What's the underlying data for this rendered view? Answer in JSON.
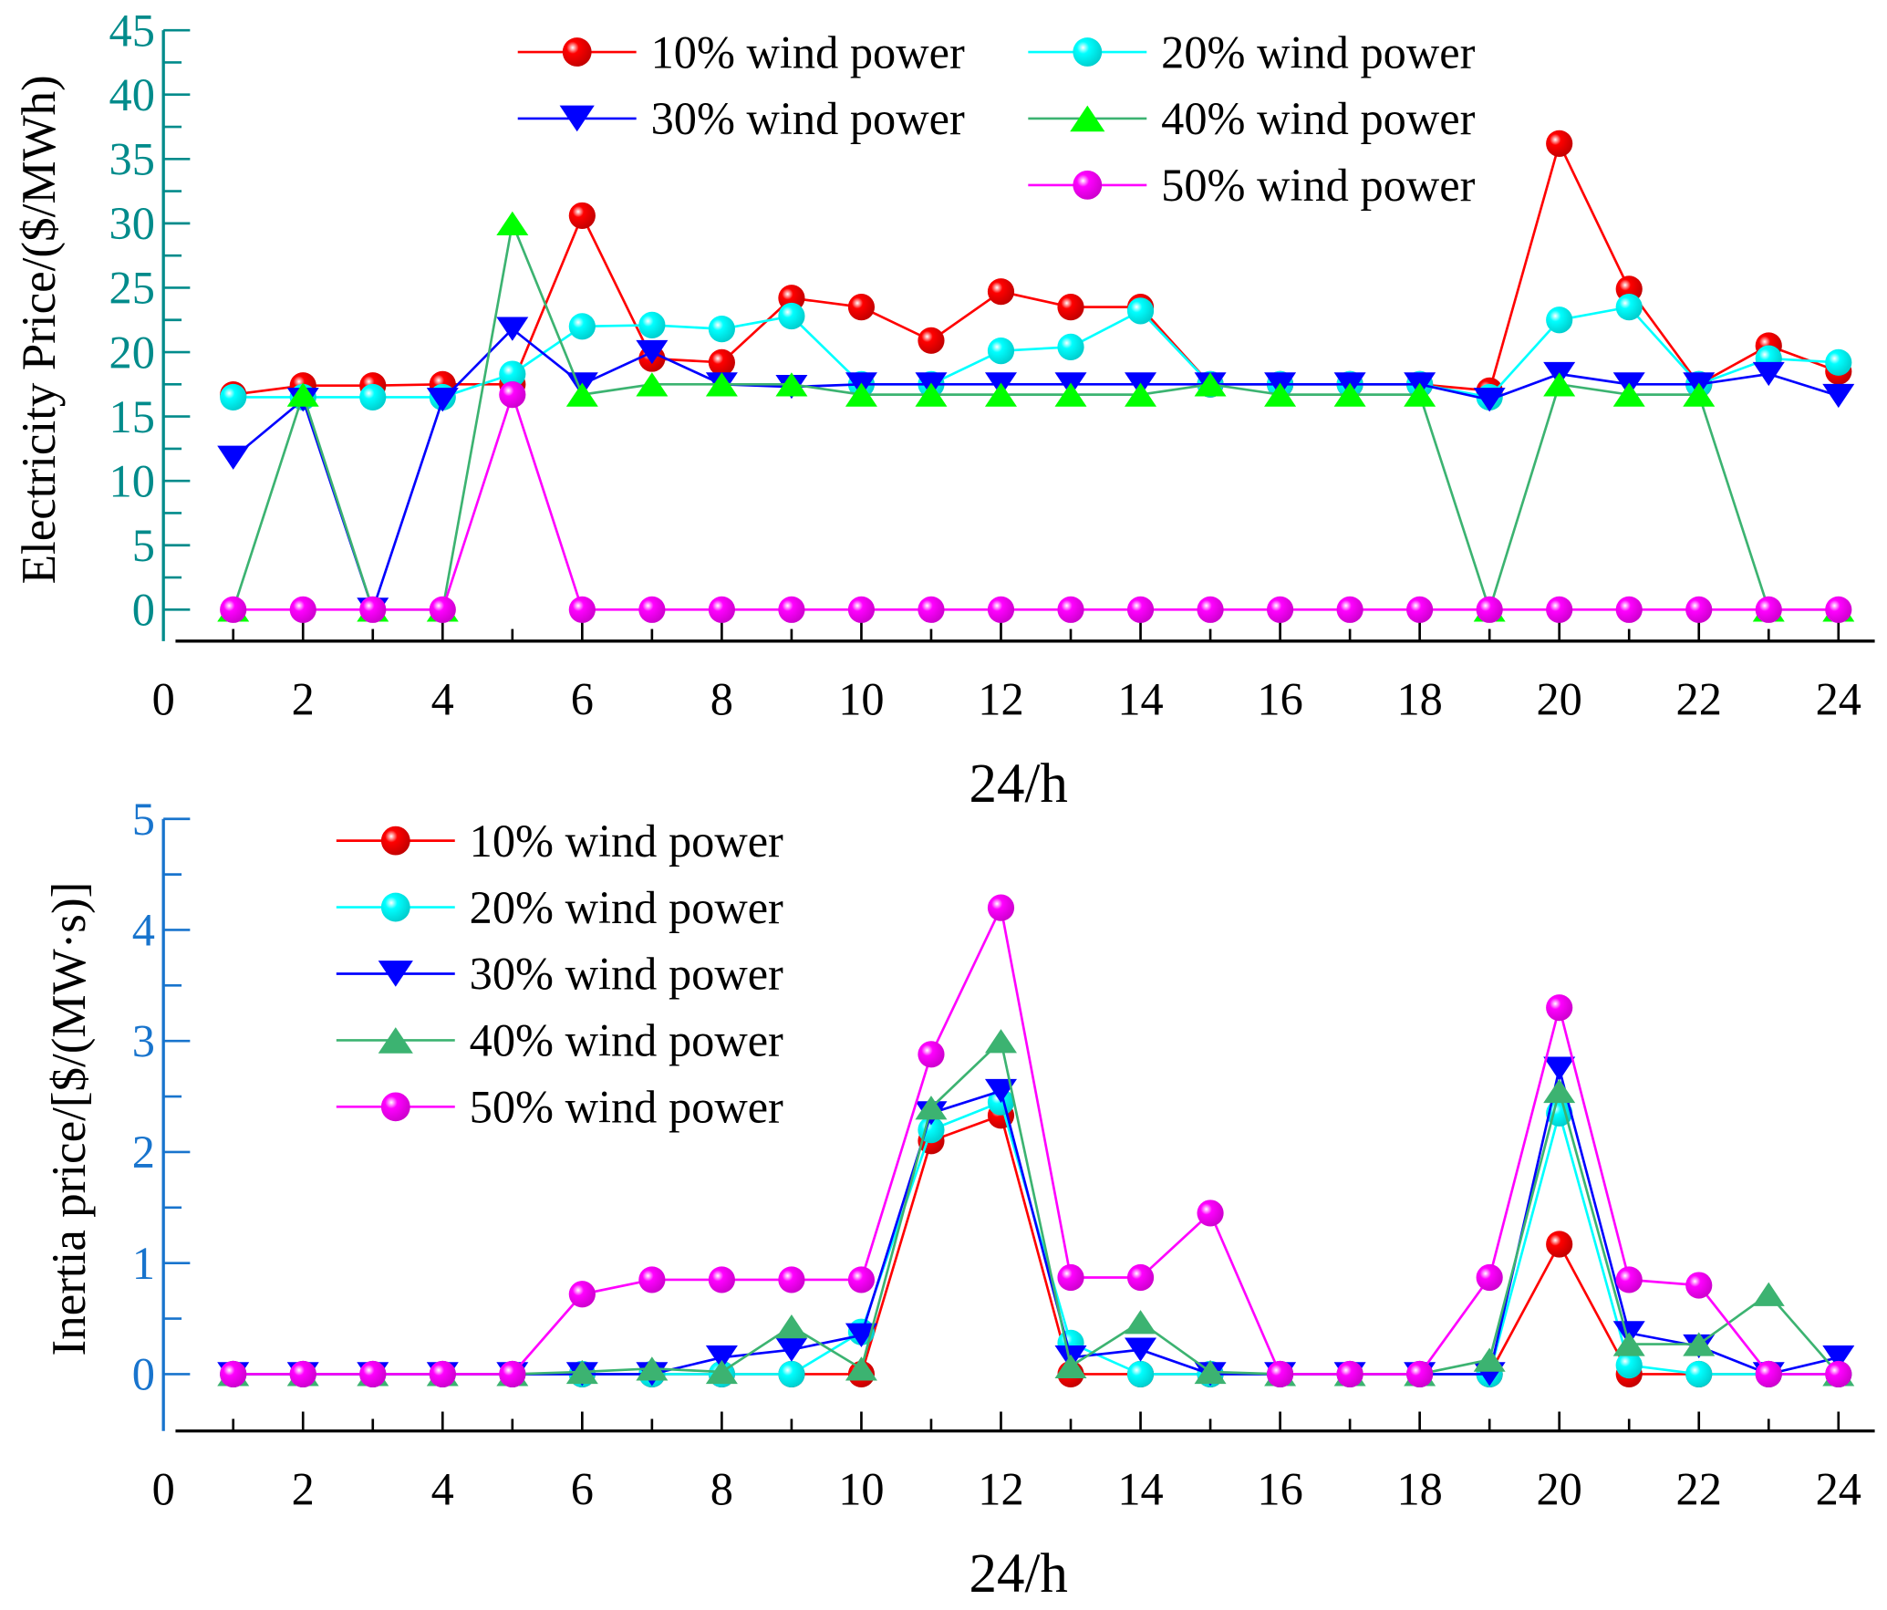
{
  "colors": {
    "s10": "#ff0000",
    "s20": "#00ffff",
    "s30": "#0000ff",
    "s40line": "#3cb371",
    "s40top": "#00ff00",
    "s40bot": "#3cb371",
    "s50": "#ff00ff",
    "axisTop": "#008b8b",
    "axisBottom": "#1874cd"
  },
  "chart_data": [
    {
      "type": "line",
      "title": "",
      "xlabel": "24/h",
      "ylabel": "Electricity Price/($/MWh)",
      "xlim": [
        0,
        24
      ],
      "ylim": [
        0,
        45
      ],
      "xticks": [
        "0",
        "2",
        "4",
        "6",
        "8",
        "10",
        "12",
        "14",
        "16",
        "18",
        "20",
        "22",
        "24"
      ],
      "yticks": [
        "0",
        "5",
        "10",
        "15",
        "20",
        "25",
        "30",
        "35",
        "40",
        "45"
      ],
      "x": [
        1,
        2,
        3,
        4,
        5,
        6,
        7,
        8,
        9,
        10,
        11,
        12,
        13,
        14,
        15,
        16,
        17,
        18,
        19,
        20,
        21,
        22,
        23,
        24
      ],
      "legend_position": "top-right",
      "series": [
        {
          "name": "10% wind power",
          "marker": "circle",
          "values": [
            16.7,
            17.4,
            17.4,
            17.5,
            17.5,
            30.6,
            19.5,
            19.2,
            24.2,
            23.5,
            20.9,
            24.7,
            23.5,
            23.5,
            17.5,
            17.5,
            17.5,
            17.5,
            17.0,
            36.2,
            24.9,
            17.5,
            20.5,
            18.5
          ]
        },
        {
          "name": "20% wind power",
          "marker": "circle",
          "values": [
            16.5,
            16.5,
            16.5,
            16.5,
            18.3,
            22.0,
            22.1,
            21.8,
            22.8,
            17.5,
            17.5,
            20.1,
            20.4,
            23.2,
            17.5,
            17.5,
            17.5,
            17.5,
            16.5,
            22.5,
            23.5,
            17.5,
            19.5,
            19.2
          ]
        },
        {
          "name": "30% wind power",
          "marker": "triangle-down",
          "values": [
            11.8,
            16.3,
            0,
            16.3,
            21.8,
            17.5,
            20.0,
            17.5,
            17.3,
            17.5,
            17.5,
            17.5,
            17.5,
            17.5,
            17.5,
            17.5,
            17.5,
            17.5,
            16.3,
            18.3,
            17.5,
            17.5,
            18.3,
            16.6
          ]
        },
        {
          "name": "40% wind power",
          "marker": "triangle-up",
          "values": [
            0,
            16.7,
            0,
            0,
            30.0,
            16.7,
            17.5,
            17.5,
            17.5,
            16.7,
            16.7,
            16.7,
            16.7,
            16.7,
            17.5,
            16.7,
            16.7,
            16.7,
            0,
            17.5,
            16.7,
            16.7,
            0,
            0
          ]
        },
        {
          "name": "50% wind power",
          "marker": "circle",
          "values": [
            0,
            0,
            0,
            0,
            16.7,
            0,
            0,
            0,
            0,
            0,
            0,
            0,
            0,
            0,
            0,
            0,
            0,
            0,
            0,
            0,
            0,
            0,
            0,
            0
          ]
        }
      ]
    },
    {
      "type": "line",
      "title": "",
      "xlabel": "24/h",
      "ylabel": "Inertia price/[$/(MW·s)]",
      "xlim": [
        0,
        24
      ],
      "ylim": [
        0,
        5
      ],
      "xticks": [
        "0",
        "2",
        "4",
        "6",
        "8",
        "10",
        "12",
        "14",
        "16",
        "18",
        "20",
        "22",
        "24"
      ],
      "yticks": [
        "0",
        "1",
        "2",
        "3",
        "4",
        "5"
      ],
      "x": [
        1,
        2,
        3,
        4,
        5,
        6,
        7,
        8,
        9,
        10,
        11,
        12,
        13,
        14,
        15,
        16,
        17,
        18,
        19,
        20,
        21,
        22,
        23,
        24
      ],
      "legend_position": "top-left",
      "series": [
        {
          "name": "10% wind power",
          "marker": "circle",
          "values": [
            0,
            0,
            0,
            0,
            0,
            0,
            0,
            0,
            0,
            0,
            2.1,
            2.33,
            0,
            0,
            0,
            0,
            0,
            0,
            0,
            1.17,
            0,
            0,
            0,
            0
          ]
        },
        {
          "name": "20% wind power",
          "marker": "circle",
          "values": [
            0,
            0,
            0,
            0,
            0,
            0,
            0,
            0,
            0,
            0.38,
            2.2,
            2.45,
            0.28,
            0,
            0,
            0,
            0,
            0,
            0,
            2.35,
            0.08,
            0,
            0,
            0
          ]
        },
        {
          "name": "30% wind power",
          "marker": "triangle-down",
          "values": [
            0,
            0,
            0,
            0,
            0,
            0,
            0,
            0.15,
            0.22,
            0.35,
            2.35,
            2.55,
            0.15,
            0.22,
            0,
            0,
            0,
            0,
            0,
            2.75,
            0.37,
            0.25,
            0,
            0.15
          ]
        },
        {
          "name": "40% wind power",
          "marker": "triangle-up",
          "values": [
            0,
            0,
            0,
            0,
            0,
            0.02,
            0.05,
            0.02,
            0.43,
            0.05,
            2.4,
            3.0,
            0.07,
            0.47,
            0.02,
            0,
            0,
            0,
            0.13,
            2.55,
            0.27,
            0.27,
            0.72,
            0
          ]
        },
        {
          "name": "50% wind power",
          "marker": "circle",
          "values": [
            0,
            0,
            0,
            0,
            0,
            0.72,
            0.85,
            0.85,
            0.85,
            0.85,
            2.88,
            4.2,
            0.87,
            0.87,
            1.45,
            0,
            0,
            0,
            0.87,
            3.3,
            0.85,
            0.8,
            0,
            0
          ]
        }
      ]
    }
  ]
}
